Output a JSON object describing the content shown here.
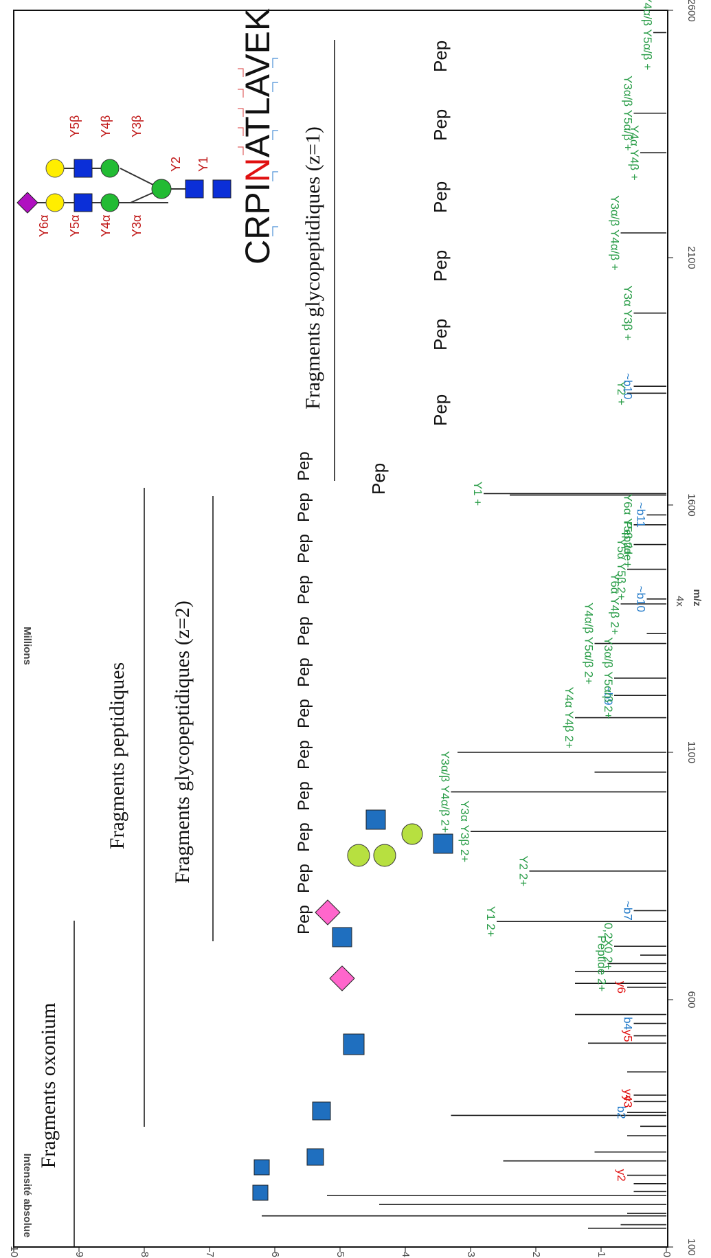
{
  "chart_data": {
    "type": "bar",
    "xlabel": "m/z",
    "ylabel": "Intensité absolue",
    "yunit": "Millions",
    "xlim": [
      100,
      2600
    ],
    "ylim": [
      0,
      10
    ],
    "xticks": [
      "100",
      "600",
      "1100",
      "1600",
      "2100",
      "2600"
    ],
    "yticks": [
      "0",
      "1",
      "2",
      "3",
      "4",
      "5",
      "6",
      "7",
      "8",
      "9",
      "10"
    ],
    "zoom_label": "4x",
    "section_labels": {
      "oxonium": "Fragments oxonium",
      "peptide": "Fragments peptidiques",
      "glyco_z2": "Fragments glycopeptidiques (z=2)",
      "glyco_z1": "Fragments glycopeptidiques (z=1)"
    },
    "sequence": {
      "before": "CRPI",
      "site": "N",
      "after": "ATLAVEK"
    },
    "glycan_labels": [
      "Y6α",
      "Y5α",
      "Y4α",
      "Y3α",
      "Y5β",
      "Y4β",
      "Y3β",
      "Y2",
      "Y1"
    ],
    "pep_label": "Pep",
    "peaks": [
      {
        "x": 138,
        "y": 1.2,
        "label": "",
        "color": "#2a7f3a"
      },
      {
        "x": 145,
        "y": 0.7,
        "label": "",
        "color": "#1a1a1a"
      },
      {
        "x": 163,
        "y": 6.2,
        "label": "",
        "color": "#1a1a1a"
      },
      {
        "x": 168,
        "y": 0.6,
        "label": "",
        "color": "#1a1a1a"
      },
      {
        "x": 186,
        "y": 4.4,
        "label": "",
        "color": "#1a1a1a"
      },
      {
        "x": 204,
        "y": 5.2,
        "label": "",
        "color": "#1a1a1a"
      },
      {
        "x": 212,
        "y": 0.5,
        "label": "",
        "color": "#1a1a1a"
      },
      {
        "x": 228,
        "y": 0.5,
        "label": "",
        "color": "#1a1a1a"
      },
      {
        "x": 245,
        "y": 0.6,
        "label": "y2",
        "color": "#e01010"
      },
      {
        "x": 274,
        "y": 2.5,
        "label": "",
        "color": "#1a1a1a"
      },
      {
        "x": 292,
        "y": 1.1,
        "label": "",
        "color": "#1a1a1a"
      },
      {
        "x": 325,
        "y": 0.6,
        "label": "",
        "color": "#1a1a1a"
      },
      {
        "x": 344,
        "y": 0.4,
        "label": "",
        "color": "#1a1a1a"
      },
      {
        "x": 366,
        "y": 3.3,
        "label": "",
        "color": "#1a1a1a"
      },
      {
        "x": 372,
        "y": 0.6,
        "label": "b2",
        "color": "#1f78c8"
      },
      {
        "x": 394,
        "y": 0.5,
        "label": "y3",
        "color": "#e01010"
      },
      {
        "x": 407,
        "y": 0.5,
        "label": "y4",
        "color": "#e01010"
      },
      {
        "x": 454,
        "y": 0.6,
        "label": "",
        "color": "#1a1a1a"
      },
      {
        "x": 512,
        "y": 1.2,
        "label": "",
        "color": "#1a1a1a"
      },
      {
        "x": 527,
        "y": 0.5,
        "label": "y5",
        "color": "#e01010"
      },
      {
        "x": 552,
        "y": 0.5,
        "label": "b4",
        "color": "#1f78c8"
      },
      {
        "x": 570,
        "y": 1.4,
        "label": "",
        "color": "#1a1a1a"
      },
      {
        "x": 625,
        "y": 0.6,
        "label": "y6",
        "color": "#e01010"
      },
      {
        "x": 633,
        "y": 1.4,
        "label": "",
        "color": "#1a1a1a"
      },
      {
        "x": 657,
        "y": 1.4,
        "label": "",
        "color": "#1a1a1a"
      },
      {
        "x": 673,
        "y": 0.9,
        "label": "Peptide 2+",
        "color": "#2a9d48"
      },
      {
        "x": 690,
        "y": 0.4,
        "label": "",
        "color": "#1a1a1a"
      },
      {
        "x": 708,
        "y": 0.8,
        "label": "0,2X0 2+",
        "color": "#2a9d48"
      },
      {
        "x": 758,
        "y": 2.6,
        "label": "Y1 2+",
        "color": "#2a9d48"
      },
      {
        "x": 780,
        "y": 0.5,
        "label": "~b7",
        "color": "#1f78c8"
      },
      {
        "x": 860,
        "y": 2.1,
        "label": "Y2 2+",
        "color": "#2a9d48"
      },
      {
        "x": 940,
        "y": 3.0,
        "label": "Y3α Y3β 2+",
        "color": "#2a9d48"
      },
      {
        "x": 1020,
        "y": 3.3,
        "label": "Y3α/β Y4α/β 2+",
        "color": "#2a9d48"
      },
      {
        "x": 1060,
        "y": 1.1,
        "label": "",
        "color": "#1a1a1a"
      },
      {
        "x": 1100,
        "y": 3.2,
        "label": "",
        "color": "#1a1a1a"
      },
      {
        "x": 1170,
        "y": 1.4,
        "label": "Y4α Y4β 2+",
        "color": "#2a9d48"
      },
      {
        "x": 1215,
        "y": 0.8,
        "label": "~b9",
        "color": "#1f78c8"
      },
      {
        "x": 1250,
        "y": 0.8,
        "label": "Y3α/β Y5α/β 2+",
        "color": "#2a9d48"
      },
      {
        "x": 1320,
        "y": 1.1,
        "label": "Y4α/β Y5α/β 2+",
        "color": "#2a9d48"
      },
      {
        "x": 1340,
        "y": 0.3,
        "label": "",
        "color": "#1a1a1a"
      },
      {
        "x": 1400,
        "y": 0.7,
        "label": "Y6α Y4β 2+",
        "color": "#2a9d48"
      },
      {
        "x": 1410,
        "y": 0.3,
        "label": "~b10",
        "color": "#1f78c8"
      },
      {
        "x": 1470,
        "y": 0.6,
        "label": "Y5α Y5β 2+",
        "color": "#2a9d48"
      },
      {
        "x": 1520,
        "y": 0.5,
        "label": "Peptide+",
        "color": "#2a9d48"
      },
      {
        "x": 1560,
        "y": 0.5,
        "label": "Y6α Y5β 2+",
        "color": "#2a9d48"
      },
      {
        "x": 1580,
        "y": 0.3,
        "label": "~b11",
        "color": "#1f78c8"
      },
      {
        "x": 1620,
        "y": 2.4,
        "label": "",
        "color": "#1a1a1a"
      },
      {
        "x": 1623,
        "y": 2.8,
        "label": "Y1 +",
        "color": "#2a9d48"
      },
      {
        "x": 1826,
        "y": 0.6,
        "label": "Y2 +",
        "color": "#2a9d48"
      },
      {
        "x": 1840,
        "y": 0.5,
        "label": "~b10",
        "color": "#1f78c8"
      },
      {
        "x": 1988,
        "y": 0.5,
        "label": "Y3α Y3β +",
        "color": "#2a9d48"
      },
      {
        "x": 2150,
        "y": 0.7,
        "label": "Y3α/β Y4α/β +",
        "color": "#2a9d48"
      },
      {
        "x": 2312,
        "y": 0.4,
        "label": "Y4α Y4β +",
        "color": "#2a9d48"
      },
      {
        "x": 2392,
        "y": 0.5,
        "label": "Y3α/β Y5α/β +",
        "color": "#2a9d48"
      },
      {
        "x": 2555,
        "y": 0.2,
        "label": "Y4α/β Y5α/β +",
        "color": "#2a9d48"
      }
    ]
  }
}
